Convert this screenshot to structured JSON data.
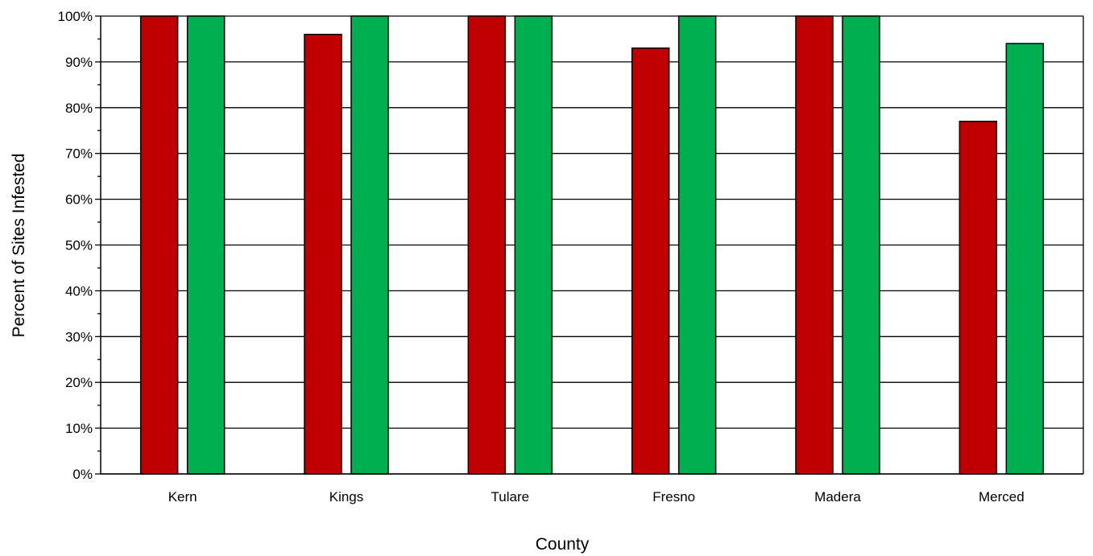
{
  "chart_data": {
    "type": "bar",
    "title": "",
    "xlabel": "County",
    "ylabel": "Percent of Sites Infested",
    "categories": [
      "Kern",
      "Kings",
      "Tulare",
      "Fresno",
      "Madera",
      "Merced"
    ],
    "series": [
      {
        "color": "#c00000",
        "values": [
          100,
          96,
          100,
          93,
          100,
          77
        ]
      },
      {
        "color": "#00b050",
        "values": [
          100,
          100,
          100,
          100,
          100,
          94
        ]
      }
    ],
    "ylim": [
      0,
      100
    ],
    "yticks": [
      0,
      10,
      20,
      30,
      40,
      50,
      60,
      70,
      80,
      90,
      100
    ],
    "ytick_labels": [
      "0%",
      "10%",
      "20%",
      "30%",
      "40%",
      "50%",
      "60%",
      "70%",
      "80%",
      "90%",
      "100%"
    ],
    "grid": true,
    "legend": "none"
  }
}
